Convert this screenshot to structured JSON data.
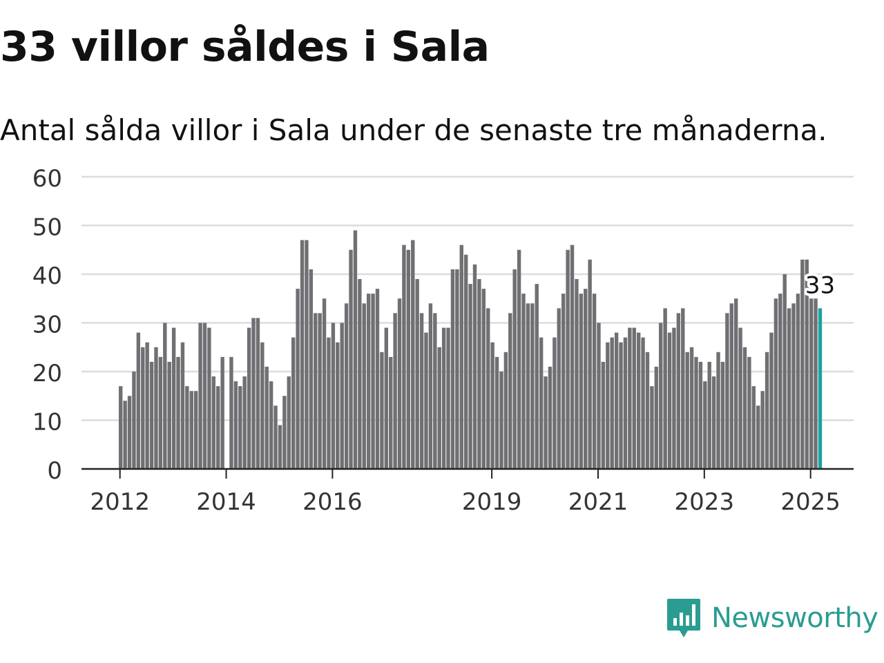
{
  "title": "33 villor såldes i Sala",
  "subtitle": "Antal sålda villor i Sala under de senaste tre månaderna.",
  "brand": "Newsworthy",
  "colors": {
    "bar": "#707074",
    "highlight": "#19a59a",
    "grid": "#dcdcdc",
    "axis": "#222222",
    "text": "#333333",
    "brand": "#2a9c92"
  },
  "chart_data": {
    "type": "bar",
    "title": "33 villor såldes i Sala",
    "subtitle": "Antal sålda villor i Sala under de senaste tre månaderna.",
    "xlabel": "",
    "ylabel": "",
    "ylim": [
      0,
      60
    ],
    "yticks": [
      0,
      10,
      20,
      30,
      40,
      50,
      60
    ],
    "xtick_labels": [
      "2012",
      "2014",
      "2016",
      "2019",
      "2021",
      "2023",
      "2025"
    ],
    "xtick_years": [
      2012,
      2014,
      2016,
      2019,
      2021,
      2023,
      2025
    ],
    "start_year": 2012,
    "start_month": 1,
    "grid": true,
    "legend": "none",
    "highlight_label": "33",
    "values": [
      17,
      14,
      15,
      20,
      28,
      25,
      26,
      22,
      25,
      23,
      30,
      22,
      29,
      23,
      26,
      17,
      16,
      16,
      30,
      30,
      29,
      19,
      17,
      23,
      0,
      23,
      18,
      17,
      19,
      29,
      31,
      31,
      26,
      21,
      18,
      13,
      9,
      15,
      19,
      27,
      37,
      47,
      47,
      41,
      32,
      32,
      35,
      27,
      30,
      26,
      30,
      34,
      45,
      49,
      39,
      34,
      36,
      36,
      37,
      24,
      29,
      23,
      32,
      35,
      46,
      45,
      47,
      39,
      32,
      28,
      34,
      32,
      25,
      29,
      29,
      41,
      41,
      46,
      44,
      38,
      42,
      39,
      37,
      33,
      26,
      23,
      20,
      24,
      32,
      41,
      45,
      36,
      34,
      34,
      38,
      27,
      19,
      21,
      27,
      33,
      36,
      45,
      46,
      39,
      36,
      37,
      43,
      36,
      30,
      22,
      26,
      27,
      28,
      26,
      27,
      29,
      29,
      28,
      27,
      24,
      17,
      21,
      30,
      33,
      28,
      29,
      32,
      33,
      24,
      25,
      23,
      22,
      18,
      22,
      19,
      24,
      22,
      32,
      34,
      35,
      29,
      25,
      23,
      17,
      13,
      16,
      24,
      28,
      35,
      36,
      40,
      33,
      34,
      36,
      43,
      43,
      35,
      35,
      33
    ]
  }
}
